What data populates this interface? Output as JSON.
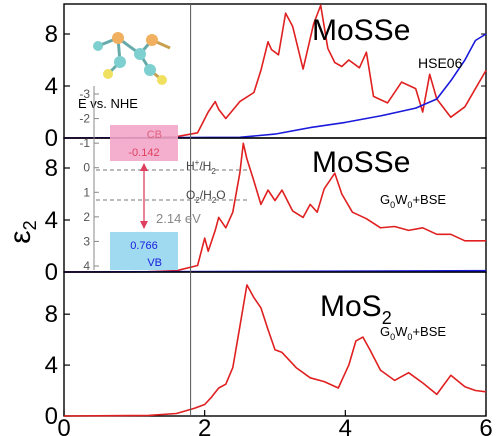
{
  "figure": {
    "ylabel_main": "ε",
    "ylabel_sub": "2",
    "vline_x": 1.8,
    "colors": {
      "red": "#e02020",
      "blue": "#1a1adc",
      "pink": "#f2a6c8",
      "cyan": "#9ad8f0",
      "axis": "#000000",
      "gray": "#888888"
    }
  },
  "chart_data": [
    {
      "type": "line",
      "panel": "top",
      "title": "MoSSe",
      "method": "HSE06",
      "xlim": [
        0,
        6
      ],
      "ylim": [
        0,
        10
      ],
      "yticks": [
        0,
        4,
        8
      ],
      "xticks": [],
      "series": [
        {
          "color": "red",
          "x": [
            0,
            1.2,
            1.6,
            1.9,
            2.05,
            2.15,
            2.2,
            2.3,
            2.5,
            2.7,
            2.8,
            2.9,
            2.95,
            3.05,
            3.15,
            3.25,
            3.4,
            3.55,
            3.65,
            3.75,
            3.85,
            3.95,
            4.05,
            4.2,
            4.3,
            4.4,
            4.6,
            4.8,
            5.0,
            5.1,
            5.2,
            5.3,
            5.5,
            5.7,
            6.0
          ],
          "y": [
            0,
            0.02,
            0.1,
            0.4,
            2.0,
            2.8,
            2.2,
            1.5,
            2.8,
            3.5,
            5.2,
            7.4,
            6.8,
            6.4,
            9.6,
            8.6,
            5.3,
            8.8,
            10.2,
            6.9,
            5.8,
            5.5,
            6.0,
            5.4,
            6.6,
            3.2,
            2.7,
            4.3,
            3.8,
            2.0,
            4.9,
            3.0,
            1.6,
            2.4,
            5.2
          ]
        },
        {
          "color": "blue",
          "x": [
            0,
            2.5,
            3.0,
            3.5,
            4.0,
            4.5,
            5.0,
            5.3,
            5.5,
            5.7,
            5.85,
            6.0
          ],
          "y": [
            0,
            0.05,
            0.3,
            0.8,
            1.2,
            1.7,
            2.3,
            3.0,
            4.4,
            6.0,
            7.5,
            8.0
          ]
        }
      ]
    },
    {
      "type": "line",
      "panel": "middle",
      "title": "MoSSe",
      "method_main": "G",
      "method_sub1": "0",
      "method_mid": "W",
      "method_sub2": "0",
      "method_tail": "+BSE",
      "xlim": [
        0,
        6
      ],
      "ylim": [
        0,
        10
      ],
      "yticks": [
        0,
        4,
        8
      ],
      "xticks": [],
      "series": [
        {
          "color": "red",
          "x": [
            0,
            1.2,
            1.6,
            1.9,
            2.0,
            2.05,
            2.15,
            2.2,
            2.3,
            2.4,
            2.5,
            2.55,
            2.6,
            2.7,
            2.8,
            2.9,
            3.0,
            3.1,
            3.25,
            3.4,
            3.5,
            3.6,
            3.7,
            3.85,
            3.95,
            4.1,
            4.3,
            4.5,
            4.7,
            4.9,
            5.1,
            5.3,
            5.5,
            5.7,
            6.0
          ],
          "y": [
            0,
            0.02,
            0.1,
            0.5,
            2.6,
            1.6,
            3.2,
            4.2,
            3.4,
            4.6,
            7.6,
            9.9,
            8.7,
            7.0,
            5.2,
            6.3,
            5.5,
            6.3,
            4.7,
            4.2,
            5.2,
            4.6,
            6.4,
            7.6,
            6.0,
            4.6,
            4.1,
            3.4,
            3.5,
            3.2,
            3.4,
            2.9,
            2.9,
            2.4,
            2.4
          ]
        },
        {
          "color": "blue",
          "x": [
            0,
            6.0
          ],
          "y": [
            0,
            0.1
          ]
        }
      ]
    },
    {
      "type": "line",
      "panel": "bottom",
      "title_main": "MoS",
      "title_sub": "2",
      "method_main": "G",
      "method_sub1": "0",
      "method_mid": "W",
      "method_sub2": "0",
      "method_tail": "+BSE",
      "xlim": [
        0,
        6
      ],
      "ylim": [
        0,
        11
      ],
      "yticks": [
        0,
        4,
        8
      ],
      "xticks": [
        0,
        2,
        4,
        6
      ],
      "xticklabels": [
        "0",
        "2",
        "4",
        "6"
      ],
      "series": [
        {
          "color": "red",
          "x": [
            0,
            1.2,
            1.6,
            1.85,
            2.0,
            2.1,
            2.2,
            2.3,
            2.4,
            2.5,
            2.6,
            2.7,
            2.8,
            2.9,
            3.0,
            3.1,
            3.3,
            3.5,
            3.7,
            3.9,
            4.05,
            4.15,
            4.25,
            4.35,
            4.5,
            4.7,
            4.9,
            5.1,
            5.3,
            5.5,
            5.7,
            5.85,
            6.0
          ],
          "y": [
            0,
            0.05,
            0.2,
            0.6,
            0.9,
            1.5,
            2.2,
            2.5,
            3.8,
            7.0,
            10.3,
            9.3,
            8.5,
            6.8,
            5.2,
            5.0,
            3.8,
            3.0,
            2.7,
            2.2,
            4.0,
            5.9,
            6.2,
            5.2,
            3.6,
            2.8,
            3.4,
            2.6,
            1.7,
            3.2,
            2.3,
            2.0,
            1.9
          ]
        }
      ]
    }
  ],
  "inset": {
    "atoms": "structure-icon",
    "label": "E vs. NHE",
    "yticks": [
      "-3",
      "-2",
      "-1",
      "0",
      "1",
      "2",
      "3",
      "4"
    ],
    "cb_label": "CB",
    "cb_value": "-0.142",
    "vb_value": "0.766",
    "vb_label": "VB",
    "h_label_main": "H",
    "h_label_sup": "+",
    "h_label_slash": "/H",
    "h_label_sub": "2",
    "o_label_main": "O",
    "o_label_sub": "2",
    "o_label_tail": "/H",
    "o_label_sub2": "2",
    "o_label_end": "O",
    "gap_label": "2.14 eV"
  }
}
